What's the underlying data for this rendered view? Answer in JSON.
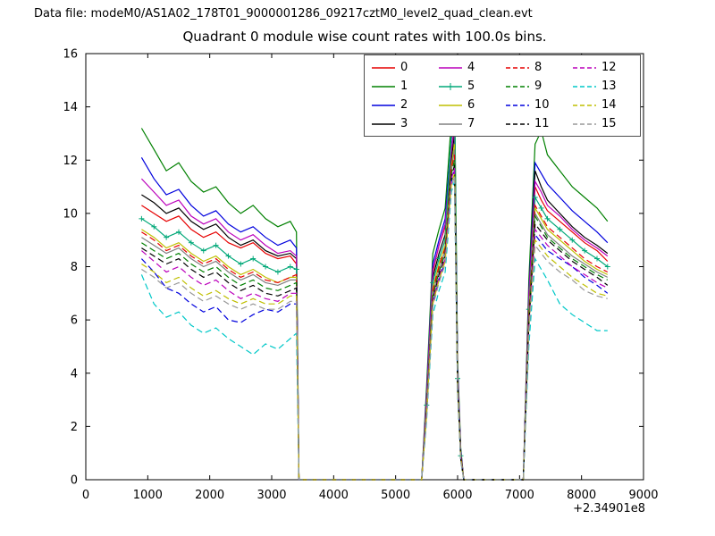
{
  "chart_data": {
    "type": "line",
    "suptitle": "Data file: modeM0/AS1A02_178T01_9000001286_09217cztM0_level2_quad_clean.evt",
    "title": "Quadrant 0 module wise count rates with 100.0s bins.",
    "xlabel": "",
    "ylabel": "",
    "x_offset_label": "+2.34901e8",
    "xlim": [
      0,
      9000
    ],
    "ylim": [
      0,
      16
    ],
    "xticks": [
      0,
      1000,
      2000,
      3000,
      4000,
      5000,
      6000,
      7000,
      8000,
      9000
    ],
    "yticks": [
      0,
      2,
      4,
      6,
      8,
      10,
      12,
      14,
      16
    ],
    "grid": false,
    "legend_position": "upper center-right",
    "legend_columns": 4,
    "x": [
      900,
      1100,
      1300,
      1500,
      1700,
      1900,
      2100,
      2300,
      2500,
      2700,
      2900,
      3100,
      3300,
      3400,
      3440,
      5420,
      5500,
      5600,
      5700,
      5800,
      5900,
      5950,
      6000,
      6050,
      6100,
      7060,
      7150,
      7250,
      7350,
      7450,
      7650,
      7850,
      8050,
      8250,
      8420
    ],
    "series": [
      {
        "name": "0",
        "color": "#e60000",
        "style": "solid",
        "marker": "",
        "values": [
          10.3,
          10.0,
          9.7,
          9.9,
          9.4,
          9.1,
          9.3,
          8.9,
          8.7,
          8.9,
          8.5,
          8.3,
          8.4,
          8.1,
          0,
          0,
          3.0,
          7.8,
          8.8,
          9.5,
          12.3,
          13.4,
          4.0,
          1.0,
          0,
          0,
          6.5,
          11.0,
          10.5,
          10.1,
          9.7,
          9.3,
          8.9,
          8.6,
          8.2
        ]
      },
      {
        "name": "1",
        "color": "#008000",
        "style": "solid",
        "marker": "",
        "values": [
          13.2,
          12.4,
          11.6,
          11.9,
          11.2,
          10.8,
          11.0,
          10.4,
          10.0,
          10.3,
          9.8,
          9.5,
          9.7,
          9.3,
          0,
          0,
          3.5,
          8.5,
          9.4,
          10.2,
          13.5,
          15.0,
          4.5,
          1.2,
          0,
          0,
          7.5,
          12.6,
          13.1,
          12.2,
          11.6,
          11.0,
          10.6,
          10.2,
          9.7
        ]
      },
      {
        "name": "2",
        "color": "#0000dd",
        "style": "solid",
        "marker": "",
        "values": [
          12.1,
          11.3,
          10.7,
          10.9,
          10.3,
          9.9,
          10.1,
          9.6,
          9.3,
          9.5,
          9.1,
          8.8,
          9.0,
          8.7,
          0,
          0,
          3.2,
          8.1,
          9.0,
          9.8,
          12.8,
          13.8,
          4.2,
          1.1,
          0,
          0,
          7.0,
          11.9,
          11.5,
          11.1,
          10.6,
          10.1,
          9.7,
          9.3,
          8.9
        ]
      },
      {
        "name": "3",
        "color": "#000000",
        "style": "solid",
        "marker": "",
        "values": [
          10.7,
          10.4,
          10.0,
          10.2,
          9.7,
          9.4,
          9.6,
          9.1,
          8.8,
          9.0,
          8.6,
          8.4,
          8.5,
          8.3,
          0,
          0,
          2.9,
          7.6,
          8.5,
          9.2,
          12.0,
          13.0,
          3.9,
          1.0,
          0,
          0,
          6.8,
          11.6,
          11.0,
          10.5,
          10.0,
          9.5,
          9.1,
          8.8,
          8.5
        ]
      },
      {
        "name": "4",
        "color": "#bb00bb",
        "style": "solid",
        "marker": "",
        "values": [
          11.3,
          10.8,
          10.3,
          10.5,
          9.9,
          9.6,
          9.8,
          9.3,
          9.0,
          9.2,
          8.8,
          8.5,
          8.6,
          8.4,
          0,
          0,
          3.1,
          7.9,
          8.8,
          9.6,
          12.4,
          13.2,
          4.1,
          1.0,
          0,
          0,
          6.9,
          11.2,
          10.8,
          10.3,
          9.9,
          9.4,
          9.0,
          8.7,
          8.4
        ]
      },
      {
        "name": "5",
        "color": "#00a878",
        "style": "solid",
        "marker": "+",
        "values": [
          9.8,
          9.5,
          9.1,
          9.3,
          8.9,
          8.6,
          8.8,
          8.4,
          8.1,
          8.3,
          8.0,
          7.8,
          8.0,
          7.9,
          0,
          0,
          2.8,
          7.4,
          8.3,
          9.0,
          13.0,
          14.4,
          3.8,
          0.9,
          0,
          0,
          6.4,
          10.6,
          10.2,
          9.8,
          9.4,
          9.0,
          8.6,
          8.3,
          8.0
        ]
      },
      {
        "name": "6",
        "color": "#bfbf00",
        "style": "solid",
        "marker": "",
        "values": [
          9.4,
          9.1,
          8.7,
          8.9,
          8.5,
          8.2,
          8.4,
          8.0,
          7.7,
          7.9,
          7.6,
          7.4,
          7.6,
          7.6,
          0,
          0,
          2.7,
          7.2,
          8.1,
          8.8,
          11.8,
          12.6,
          3.7,
          0.9,
          0,
          0,
          6.2,
          10.2,
          9.8,
          9.4,
          9.0,
          8.6,
          8.2,
          7.9,
          7.7
        ]
      },
      {
        "name": "7",
        "color": "#808080",
        "style": "solid",
        "marker": "",
        "values": [
          9.1,
          8.8,
          8.5,
          8.7,
          8.3,
          8.0,
          8.2,
          7.8,
          7.5,
          7.7,
          7.4,
          7.3,
          7.5,
          7.5,
          0,
          0,
          2.6,
          7.0,
          7.9,
          8.6,
          11.6,
          12.4,
          3.6,
          0.8,
          0,
          0,
          6.0,
          10.0,
          9.6,
          9.2,
          8.8,
          8.4,
          8.1,
          7.8,
          7.6
        ]
      },
      {
        "name": "8",
        "color": "#e60000",
        "style": "dashed",
        "marker": "",
        "values": [
          9.3,
          9.0,
          8.6,
          8.8,
          8.4,
          8.1,
          8.3,
          7.9,
          7.6,
          7.8,
          7.5,
          7.4,
          7.6,
          7.7,
          0,
          0,
          2.7,
          7.1,
          8.0,
          8.7,
          11.7,
          12.2,
          3.6,
          0.9,
          0,
          0,
          6.1,
          10.3,
          9.9,
          9.5,
          9.1,
          8.7,
          8.3,
          8.0,
          7.8
        ]
      },
      {
        "name": "9",
        "color": "#008000",
        "style": "dashed",
        "marker": "",
        "values": [
          8.9,
          8.6,
          8.3,
          8.5,
          8.1,
          7.8,
          8.0,
          7.6,
          7.3,
          7.5,
          7.2,
          7.1,
          7.3,
          7.4,
          0,
          0,
          2.6,
          6.9,
          7.8,
          8.5,
          11.5,
          12.0,
          3.5,
          0.8,
          0,
          0,
          5.9,
          9.9,
          9.5,
          9.1,
          8.7,
          8.3,
          8.0,
          7.7,
          7.5
        ]
      },
      {
        "name": "10",
        "color": "#0000dd",
        "style": "dashed",
        "marker": "",
        "values": [
          8.3,
          7.8,
          7.2,
          7.0,
          6.6,
          6.3,
          6.5,
          6.0,
          5.9,
          6.2,
          6.4,
          6.3,
          6.6,
          6.6,
          0,
          0,
          2.4,
          6.6,
          7.5,
          8.2,
          11.2,
          11.6,
          3.4,
          0.8,
          0,
          0,
          5.6,
          9.2,
          8.9,
          8.6,
          8.3,
          8.0,
          7.6,
          7.3,
          7.0
        ]
      },
      {
        "name": "11",
        "color": "#000000",
        "style": "dashed",
        "marker": "",
        "values": [
          8.7,
          8.4,
          8.1,
          8.3,
          7.9,
          7.6,
          7.8,
          7.4,
          7.1,
          7.3,
          7.0,
          6.9,
          7.1,
          7.2,
          0,
          0,
          2.5,
          6.8,
          7.7,
          8.4,
          11.4,
          11.8,
          3.5,
          0.8,
          0,
          0,
          5.8,
          9.6,
          9.3,
          9.0,
          8.6,
          8.2,
          7.9,
          7.6,
          7.3
        ]
      },
      {
        "name": "12",
        "color": "#bb00bb",
        "style": "dashed",
        "marker": "",
        "values": [
          8.6,
          8.2,
          7.8,
          8.0,
          7.6,
          7.3,
          7.5,
          7.1,
          6.8,
          7.0,
          6.8,
          6.7,
          7.0,
          7.0,
          0,
          0,
          2.5,
          6.7,
          7.6,
          8.3,
          11.3,
          11.7,
          3.4,
          0.8,
          0,
          0,
          5.7,
          9.4,
          9.1,
          8.8,
          8.4,
          8.0,
          7.7,
          7.4,
          7.2
        ]
      },
      {
        "name": "13",
        "color": "#00c8c8",
        "style": "dashed",
        "marker": "",
        "values": [
          7.7,
          6.6,
          6.1,
          6.3,
          5.8,
          5.5,
          5.7,
          5.3,
          5.0,
          4.7,
          5.1,
          4.9,
          5.3,
          5.5,
          0,
          0,
          2.2,
          6.2,
          7.1,
          7.8,
          10.8,
          11.2,
          3.2,
          0.7,
          0,
          0,
          5.0,
          8.3,
          7.9,
          7.5,
          6.6,
          6.2,
          5.9,
          5.6,
          5.6
        ]
      },
      {
        "name": "14",
        "color": "#bfbf00",
        "style": "dashed",
        "marker": "",
        "values": [
          8.1,
          7.8,
          7.4,
          7.6,
          7.2,
          6.9,
          7.1,
          6.8,
          6.6,
          6.8,
          6.6,
          6.6,
          6.9,
          6.9,
          0,
          0,
          2.4,
          6.6,
          7.5,
          8.2,
          11.1,
          11.5,
          3.4,
          0.8,
          0,
          0,
          5.6,
          9.0,
          8.7,
          8.4,
          8.0,
          7.6,
          7.3,
          7.0,
          6.9
        ]
      },
      {
        "name": "15",
        "color": "#999999",
        "style": "dashed",
        "marker": "",
        "values": [
          7.9,
          7.6,
          7.2,
          7.4,
          7.0,
          6.7,
          6.9,
          6.6,
          6.4,
          6.6,
          6.4,
          6.4,
          6.7,
          6.7,
          0,
          0,
          2.3,
          6.5,
          7.4,
          8.1,
          11.0,
          11.4,
          3.3,
          0.7,
          0,
          0,
          5.5,
          8.8,
          8.5,
          8.2,
          7.8,
          7.5,
          7.1,
          6.9,
          6.8
        ]
      }
    ]
  }
}
